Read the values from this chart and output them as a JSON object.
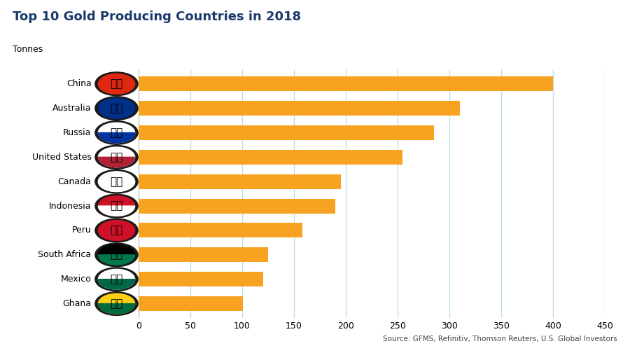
{
  "title": "Top 10 Gold Producing Countries in 2018",
  "ylabel_unit": "Tonnes",
  "source": "Source: GFMS, Refinitiv, Thomson Reuters, U.S. Global Investors",
  "countries": [
    "China",
    "Australia",
    "Russia",
    "United States",
    "Canada",
    "Indonesia",
    "Peru",
    "South Africa",
    "Mexico",
    "Ghana"
  ],
  "values": [
    400,
    310,
    285,
    255,
    195,
    190,
    158,
    125,
    120,
    101
  ],
  "bar_color": "#F7A220",
  "grid_color": "#B8DDE8",
  "title_color": "#1B3A6B",
  "xlim": [
    0,
    450
  ],
  "xticks": [
    0,
    50,
    100,
    150,
    200,
    250,
    300,
    350,
    400,
    450
  ],
  "bar_height": 0.6,
  "background_color": "#FFFFFF",
  "flag_outer_color": "#1A1A1A",
  "flag_colors_top": {
    "China": "#DE2910",
    "Australia": "#003087",
    "Russia": "#FFFFFF",
    "United States": "#FFFFFF",
    "Canada": "#FFFFFF",
    "Indonesia": "#CE1126",
    "Peru": "#CE1126",
    "South Africa": "#000000",
    "Mexico": "#FFFFFF",
    "Ghana": "#FCD116"
  },
  "flag_colors_bottom": {
    "China": "#DE2910",
    "Australia": "#003087",
    "Russia": "#0033A0",
    "United States": "#B22234",
    "Canada": "#FFFFFF",
    "Indonesia": "#FFFFFF",
    "Peru": "#CE1126",
    "South Africa": "#007A4D",
    "Mexico": "#006847",
    "Ghana": "#006B3F"
  }
}
